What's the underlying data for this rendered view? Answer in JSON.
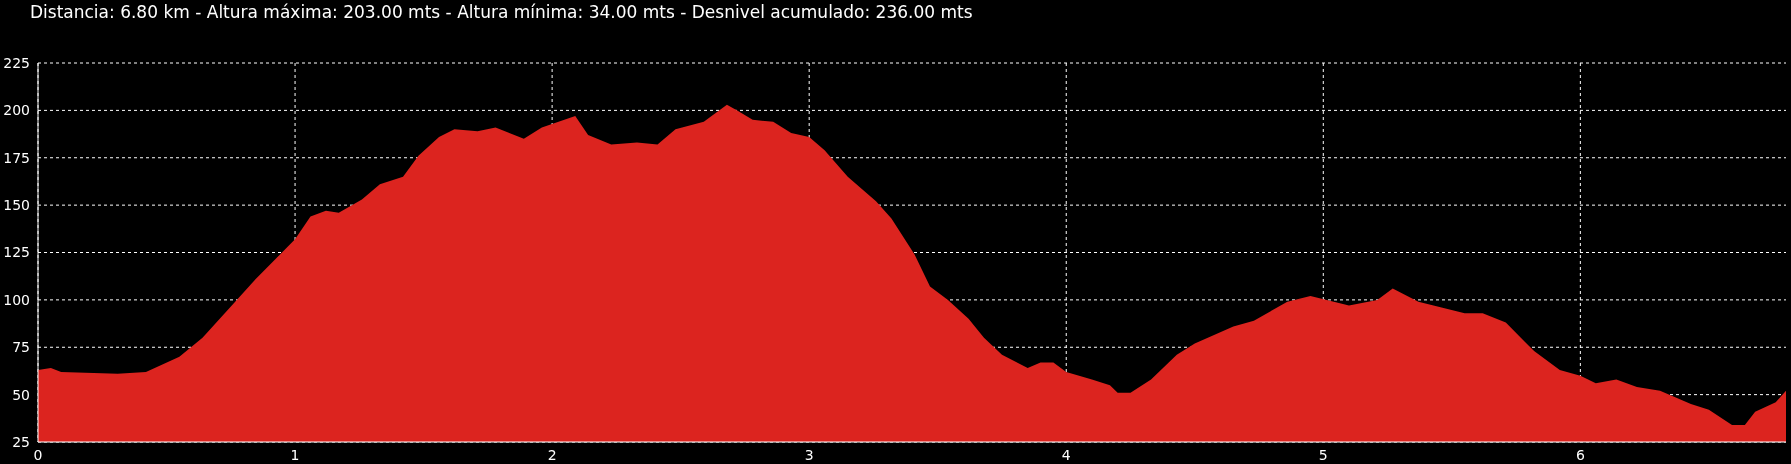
{
  "chart_data": {
    "type": "area",
    "title": "Distancia: 6.80 km - Altura máxima: 203.00 mts - Altura mínima: 34.00 mts - Desnivel acumulado: 236.00 mts",
    "x": [
      0,
      0.05,
      0.09,
      0.31,
      0.42,
      0.55,
      0.64,
      0.76,
      0.84,
      1.0,
      1.06,
      1.12,
      1.17,
      1.26,
      1.33,
      1.42,
      1.48,
      1.56,
      1.62,
      1.71,
      1.78,
      1.89,
      1.96,
      2.09,
      2.14,
      2.23,
      2.33,
      2.41,
      2.48,
      2.59,
      2.68,
      2.72,
      2.78,
      2.86,
      2.93,
      3.0,
      3.06,
      3.15,
      3.26,
      3.32,
      3.41,
      3.47,
      3.54,
      3.62,
      3.68,
      3.75,
      3.85,
      3.9,
      3.95,
      4.0,
      4.1,
      4.17,
      4.2,
      4.25,
      4.33,
      4.43,
      4.5,
      4.65,
      4.73,
      4.86,
      4.95,
      5.1,
      5.21,
      5.27,
      5.37,
      5.46,
      5.55,
      5.62,
      5.71,
      5.82,
      5.92,
      6.0,
      6.06,
      6.14,
      6.22,
      6.31,
      6.43,
      6.5,
      6.59,
      6.64,
      6.68,
      6.76,
      6.8
    ],
    "series": [
      {
        "color": "#dc241f",
        "values": [
          63,
          64,
          62,
          61,
          62,
          70,
          80,
          98,
          110,
          132,
          144,
          147,
          146,
          153,
          161,
          165,
          176,
          186,
          190,
          189,
          191,
          185,
          191,
          197,
          187,
          182,
          183,
          182,
          190,
          194,
          203,
          200,
          195,
          194,
          188,
          186,
          179,
          165,
          152,
          143,
          124,
          107,
          100,
          90,
          80,
          71,
          64,
          67,
          67,
          62,
          58,
          55,
          51,
          51,
          58,
          71,
          77,
          86,
          89,
          99,
          102,
          97,
          100,
          106,
          99,
          96,
          93,
          93,
          88,
          73,
          63,
          60,
          56,
          58,
          54,
          52,
          45,
          42,
          34,
          34,
          41,
          46,
          52
        ]
      }
    ],
    "xlim": [
      0,
      6.8
    ],
    "xticks": [
      0,
      1,
      2,
      3,
      4,
      5,
      6
    ],
    "ylim": [
      25,
      225
    ],
    "yticks": [
      25,
      50,
      75,
      100,
      125,
      150,
      175,
      200,
      225
    ],
    "grid": true
  }
}
